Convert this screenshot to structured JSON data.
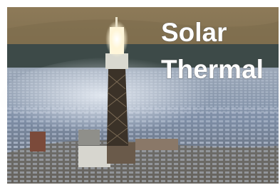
{
  "image": {
    "caption_lines": [
      "Solar",
      "Thermal"
    ]
  }
}
